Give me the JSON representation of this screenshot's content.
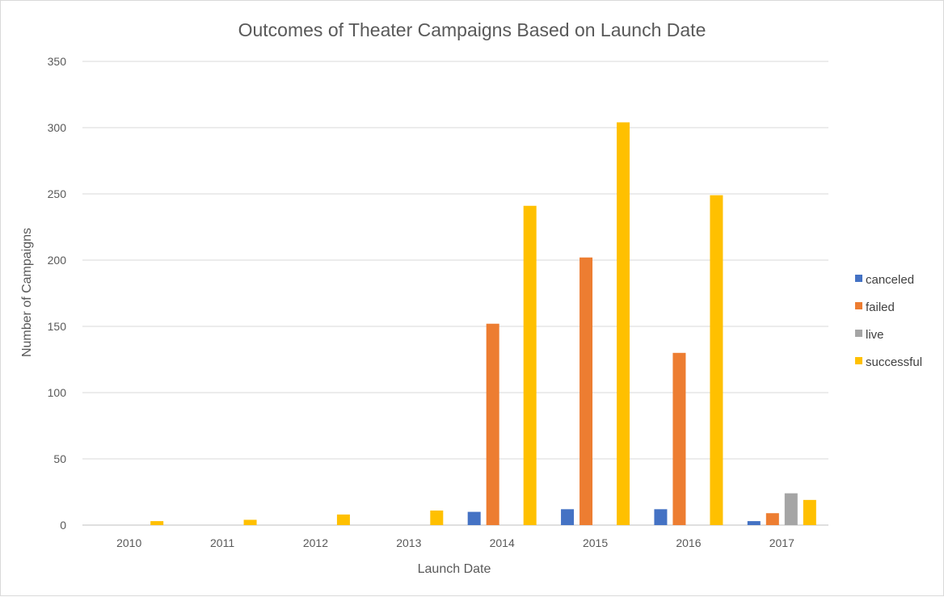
{
  "chart_data": {
    "type": "bar",
    "title": "Outcomes of Theater Campaigns Based on Launch Date",
    "xlabel": "Launch Date",
    "ylabel": "Number of Campaigns",
    "ylim": [
      0,
      350
    ],
    "yticks": [
      0,
      50,
      100,
      150,
      200,
      250,
      300,
      350
    ],
    "grid": true,
    "legend_position": "right",
    "categories": [
      "2010",
      "2011",
      "2012",
      "2013",
      "2014",
      "2015",
      "2016",
      "2017"
    ],
    "series": [
      {
        "name": "canceled",
        "color": "#4472c4",
        "values": [
          0,
          0,
          0,
          0,
          10,
          12,
          12,
          3
        ]
      },
      {
        "name": "failed",
        "color": "#ed7d31",
        "values": [
          0,
          0,
          0,
          0,
          152,
          202,
          130,
          9
        ]
      },
      {
        "name": "live",
        "color": "#a5a5a5",
        "values": [
          0,
          0,
          0,
          0,
          0,
          0,
          0,
          24
        ]
      },
      {
        "name": "successful",
        "color": "#ffc000",
        "values": [
          3,
          4,
          8,
          11,
          241,
          304,
          249,
          19
        ]
      }
    ]
  }
}
